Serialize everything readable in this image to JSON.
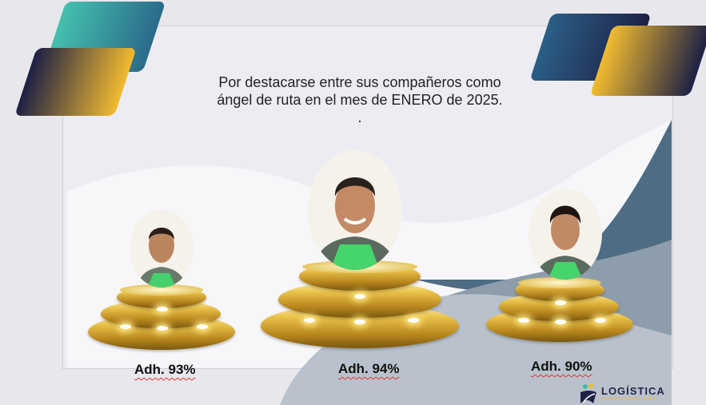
{
  "message": {
    "line1": "Por destacarse entre sus compañeros como",
    "line2": "ángel de ruta en el mes de ENERO de 2025.",
    "line3": "."
  },
  "winners": [
    {
      "label": "Adh. 93%"
    },
    {
      "label": "Adh. 94%"
    },
    {
      "label": "Adh. 90%"
    }
  ],
  "logo": {
    "name": "LOGÍSTICA",
    "tagline": "CONECTAMOS MAS"
  },
  "colors": {
    "teal": "#3fb8a8",
    "navy": "#1f2347",
    "gold": "#f0b92e",
    "slate": "#4d6b82"
  }
}
